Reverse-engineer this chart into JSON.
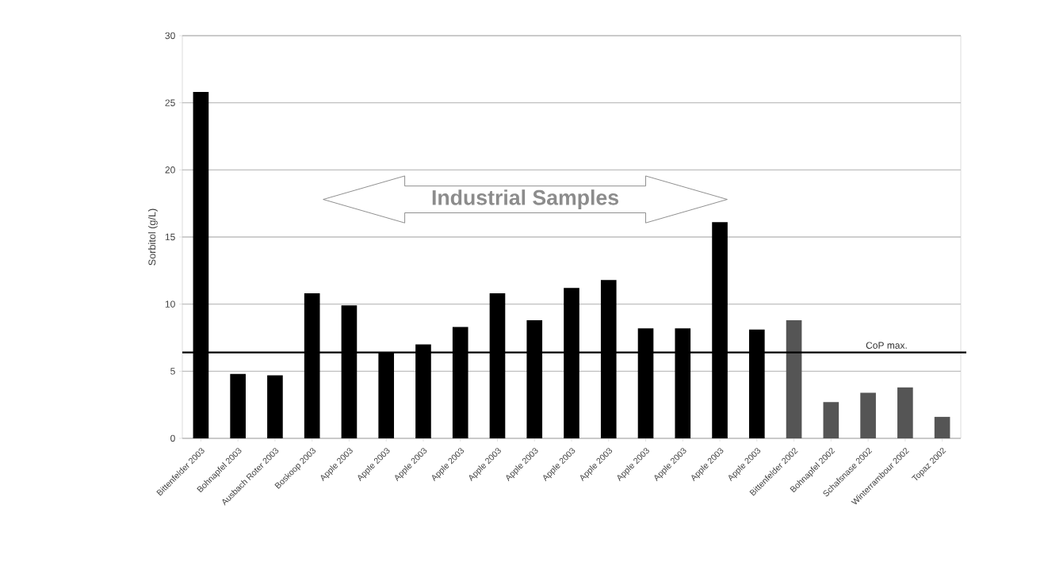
{
  "chart_data": {
    "type": "bar",
    "ylabel": "Sorbitol (g/L)",
    "categories": [
      "Bittenfelder 2003",
      "Bohnapfel 2003",
      "Ausbach Roter 2003",
      "Boskoop 2003",
      "Apple 2003",
      "Apple 2003",
      "Apple 2003",
      "Apple 2003",
      "Apple 2003",
      "Apple 2003",
      "Apple 2003",
      "Apple 2003",
      "Apple 2003",
      "Apple 2003",
      "Apple 2003",
      "Apple 2003",
      "Bittenfelder 2002",
      "Bohnapfel 2002",
      "Schafsnase 2002",
      "Winterrambour 2002",
      "Topaz 2002"
    ],
    "values": [
      25.8,
      4.8,
      4.7,
      10.8,
      9.9,
      6.4,
      7.0,
      8.3,
      10.8,
      8.8,
      11.2,
      11.8,
      8.2,
      8.2,
      16.1,
      8.1,
      8.8,
      2.7,
      3.4,
      3.8,
      1.6
    ],
    "colors": [
      "#000000",
      "#000000",
      "#000000",
      "#000000",
      "#000000",
      "#000000",
      "#000000",
      "#000000",
      "#000000",
      "#000000",
      "#000000",
      "#000000",
      "#000000",
      "#000000",
      "#000000",
      "#000000",
      "#555555",
      "#555555",
      "#555555",
      "#555555",
      "#555555"
    ],
    "ylim": [
      0,
      30
    ],
    "yticks": [
      0,
      5,
      10,
      15,
      20,
      25,
      30
    ],
    "grid": "y",
    "ref_lines": [
      {
        "axis": "y",
        "value": 6.4,
        "label": "CoP max.",
        "color": "#000000"
      }
    ],
    "annotations": [
      "Industrial Samples"
    ]
  }
}
